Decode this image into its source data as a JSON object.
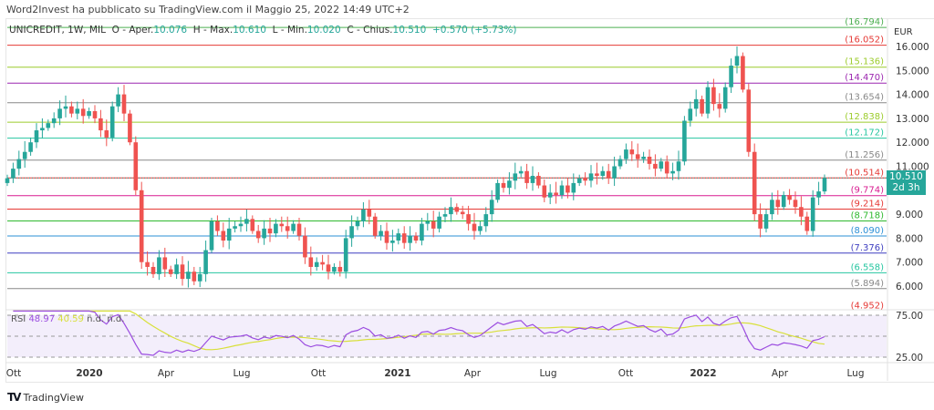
{
  "header": {
    "published": "Word2Invest ha pubblicato su TradingView.com il Maggio 25, 2022 14:49 UTC+2"
  },
  "legend": {
    "symbol": "UNICREDIT, 1W, MIL",
    "o_label": "O - Aper.",
    "open": "10.076",
    "h_label": "H - Max.",
    "high": "10.610",
    "l_label": "L - Min.",
    "low": "10.020",
    "c_label": "C - Chius.",
    "close": "10.510",
    "change": "+0.570 (+5.73%)"
  },
  "current_price": {
    "value": "10.510",
    "countdown": "2d 3h",
    "color": "#26a69a"
  },
  "rsi": {
    "label": "RSI",
    "value": "48.97",
    "ma_value": "40.59",
    "nd1": "n.d.",
    "nd2": "n.d.",
    "axis": [
      "75.00",
      "25.00"
    ]
  },
  "brand": {
    "name": "TradingView"
  },
  "colors": {
    "up": "#26a69a",
    "down": "#ef5350",
    "rsi": "#9c4ee0",
    "rsi_ma": "#d8e03a"
  },
  "chart_data": {
    "type": "candlestick",
    "interval": "1W",
    "currency": "EUR",
    "y_ticks": [
      "16.000",
      "15.000",
      "14.000",
      "13.000",
      "12.000",
      "11.000",
      "9.000",
      "8.000",
      "7.000",
      "6.000"
    ],
    "ylim": [
      4.95,
      16.8
    ],
    "x_ticks": [
      "Ott",
      "2020",
      "Apr",
      "Lug",
      "Ott",
      "2021",
      "Apr",
      "Lug",
      "Ott",
      "2022",
      "Apr",
      "Lug"
    ],
    "levels": [
      {
        "value": 16.794,
        "label": "(16.794)",
        "color": "#4caf50"
      },
      {
        "value": 16.052,
        "label": "(16.052)",
        "color": "#e53935"
      },
      {
        "value": 15.136,
        "label": "(15.136)",
        "color": "#9ccc2c"
      },
      {
        "value": 14.47,
        "label": "(14.470)",
        "color": "#9c27b0"
      },
      {
        "value": 13.654,
        "label": "(13.654)",
        "color": "#888888"
      },
      {
        "value": 12.838,
        "label": "(12.838)",
        "color": "#9ccc2c"
      },
      {
        "value": 12.172,
        "label": "(12.172)",
        "color": "#26c6a0"
      },
      {
        "value": 11.256,
        "label": "(11.256)",
        "color": "#888888"
      },
      {
        "value": 10.514,
        "label": "(10.514)",
        "color": "#e53935"
      },
      {
        "value": 9.774,
        "label": "(9.774)",
        "color": "#d81b90"
      },
      {
        "value": 9.214,
        "label": "(9.214)",
        "color": "#e53935"
      },
      {
        "value": 8.718,
        "label": "(8.718)",
        "color": "#2eb82e"
      },
      {
        "value": 8.09,
        "label": "(8.090)",
        "color": "#2b8fd6"
      },
      {
        "value": 7.376,
        "label": "(7.376)",
        "color": "#3f3fc0"
      },
      {
        "value": 6.558,
        "label": "(6.558)",
        "color": "#26c6a0"
      },
      {
        "value": 5.894,
        "label": "(5.894)",
        "color": "#888888"
      },
      {
        "value": 4.952,
        "label": "(4.952)",
        "color": "#e53935"
      }
    ],
    "closes": [
      10.5,
      10.9,
      11.3,
      11.6,
      12.0,
      12.5,
      12.6,
      12.8,
      13.0,
      13.4,
      13.5,
      13.2,
      13.4,
      13.1,
      13.3,
      13.0,
      12.5,
      12.2,
      13.5,
      14.0,
      13.2,
      12.0,
      10.0,
      7.0,
      6.8,
      6.5,
      7.2,
      6.7,
      6.5,
      6.9,
      6.3,
      6.6,
      6.2,
      6.5,
      7.5,
      8.7,
      8.3,
      7.9,
      8.4,
      8.5,
      8.6,
      8.8,
      8.3,
      8.0,
      8.4,
      8.2,
      8.6,
      8.5,
      8.3,
      8.6,
      8.1,
      7.2,
      6.8,
      7.0,
      6.9,
      6.6,
      6.8,
      6.6,
      8.0,
      8.5,
      8.7,
      9.2,
      8.9,
      8.1,
      8.3,
      7.8,
      7.9,
      8.2,
      7.8,
      8.1,
      7.9,
      8.6,
      8.7,
      8.4,
      8.9,
      9.0,
      9.3,
      9.1,
      9.0,
      8.6,
      8.3,
      8.5,
      9.0,
      9.6,
      10.3,
      10.1,
      10.4,
      10.7,
      10.8,
      10.3,
      10.6,
      10.2,
      9.7,
      9.9,
      9.8,
      10.2,
      9.9,
      10.3,
      10.5,
      10.4,
      10.7,
      10.6,
      10.8,
      10.5,
      11.0,
      11.3,
      11.7,
      11.5,
      11.3,
      11.4,
      11.1,
      10.9,
      11.2,
      10.7,
      10.8,
      11.2,
      12.9,
      13.4,
      13.8,
      13.2,
      14.3,
      13.6,
      13.4,
      14.3,
      15.2,
      15.6,
      14.2,
      11.6,
      9.0,
      8.4,
      9.0,
      9.6,
      9.3,
      9.8,
      9.6,
      9.3,
      8.9,
      8.3,
      9.7,
      9.95,
      10.51
    ]
  }
}
